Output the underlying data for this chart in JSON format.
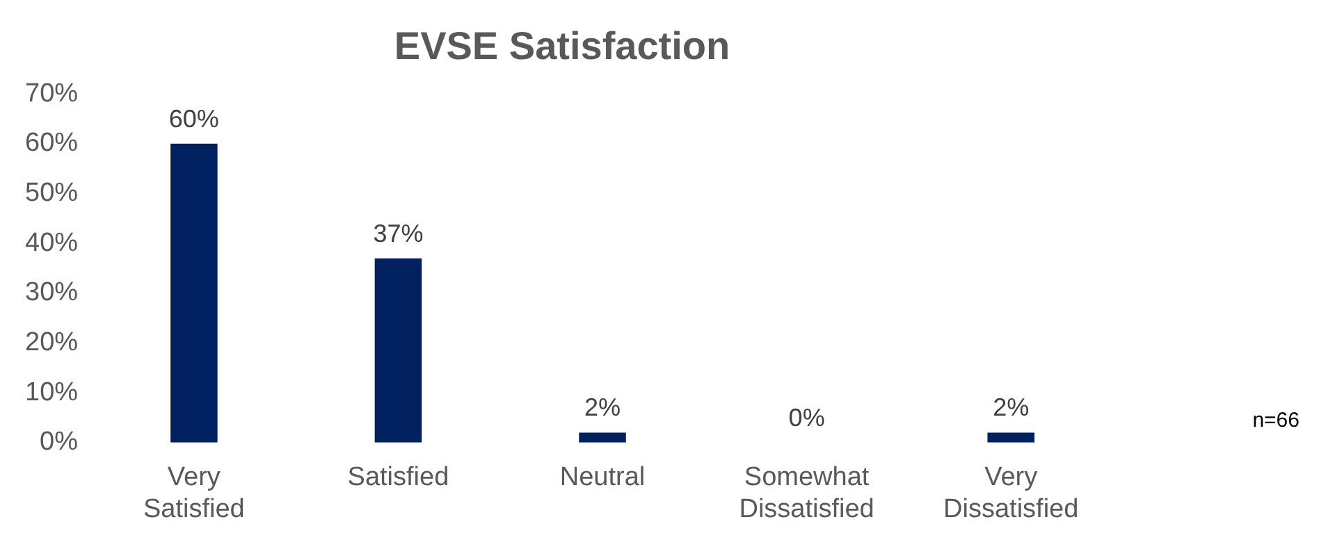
{
  "chart_data": {
    "type": "bar",
    "title": "EVSE Satisfaction",
    "categories": [
      "Very Satisfied",
      "Satisfied",
      "Neutral",
      "Somewhat Dissatisfied",
      "Very Dissatisfied"
    ],
    "values": [
      60,
      37,
      2,
      0,
      2
    ],
    "value_labels": [
      "60%",
      "37%",
      "2%",
      "0%",
      "2%"
    ],
    "color": "#002060",
    "ylim": [
      0,
      70
    ],
    "yticks": [
      {
        "value": 0,
        "label": "0%"
      },
      {
        "value": 10,
        "label": "10%"
      },
      {
        "value": 20,
        "label": "20%"
      },
      {
        "value": 30,
        "label": "30%"
      },
      {
        "value": 40,
        "label": "40%"
      },
      {
        "value": 50,
        "label": "50%"
      },
      {
        "value": 60,
        "label": "60%"
      },
      {
        "value": 70,
        "label": "70%"
      }
    ],
    "annotations": [
      "n=66"
    ],
    "legend": false,
    "grid": false
  }
}
